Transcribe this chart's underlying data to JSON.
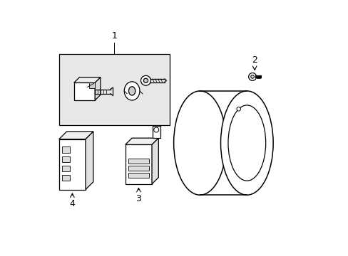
{
  "background_color": "#ffffff",
  "line_color": "#000000",
  "gray_fill": "#e8e8e8",
  "label_1": "1",
  "label_2": "2",
  "label_3": "3",
  "label_4": "4",
  "font_size_labels": 9
}
